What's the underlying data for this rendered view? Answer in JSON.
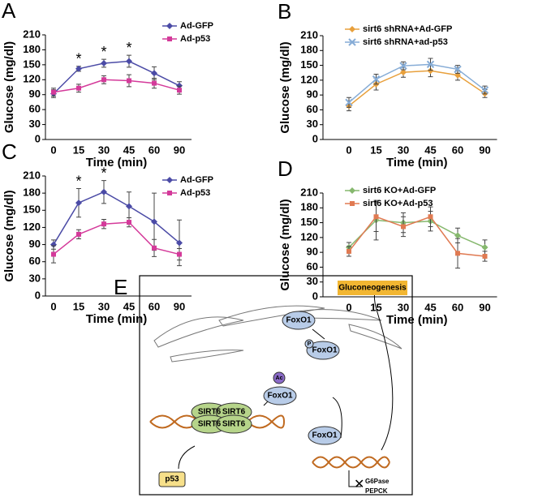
{
  "chart_data": [
    {
      "type": "line",
      "panel": "A",
      "x_label": "Time (min)",
      "y_label": "Glucose (mg/dl)",
      "categories": [
        "0",
        "15",
        "30",
        "45",
        "60",
        "90"
      ],
      "ylim": [
        0,
        210
      ],
      "yticks": [
        0,
        30,
        60,
        90,
        120,
        150,
        180,
        210
      ],
      "legend": "upper right",
      "series": [
        {
          "name": "Ad-GFP",
          "color": "#4b4ba6",
          "marker": "diamond",
          "values": [
            92,
            142,
            153,
            157,
            133,
            108
          ],
          "errors": [
            8,
            5,
            8,
            12,
            13,
            8
          ]
        },
        {
          "name": "Ad-p53",
          "color": "#d43a9a",
          "marker": "square",
          "values": [
            95,
            103,
            120,
            118,
            113,
            99
          ],
          "errors": [
            8,
            8,
            8,
            12,
            10,
            8
          ]
        }
      ],
      "annotations": [
        {
          "text": "*",
          "category": "15"
        },
        {
          "text": "*",
          "category": "30"
        },
        {
          "text": "*",
          "category": "45"
        }
      ]
    },
    {
      "type": "line",
      "panel": "B",
      "x_label": "Time (min)",
      "y_label": "Glucose (mg/dl)",
      "categories": [
        "0",
        "15",
        "30",
        "45",
        "60",
        "90"
      ],
      "ylim": [
        0,
        210
      ],
      "yticks": [
        0,
        30,
        60,
        90,
        120,
        150,
        180,
        210
      ],
      "legend": "upper right",
      "series": [
        {
          "name": "sirt6 shRNA+Ad-GFP",
          "color": "#e8a03c",
          "marker": "diamond",
          "values": [
            68,
            112,
            136,
            139,
            130,
            93
          ],
          "errors": [
            10,
            12,
            10,
            12,
            10,
            8
          ]
        },
        {
          "name": "sirt6 shRNA+ad-p53",
          "color": "#86acd6",
          "marker": "cross",
          "values": [
            75,
            122,
            149,
            152,
            142,
            100
          ],
          "errors": [
            10,
            10,
            8,
            12,
            8,
            8
          ]
        }
      ],
      "annotations": []
    },
    {
      "type": "line",
      "panel": "C",
      "x_label": "Time (min)",
      "y_label": "Glucose (mg/dl)",
      "categories": [
        "0",
        "15",
        "30",
        "45",
        "60",
        "90"
      ],
      "ylim": [
        0,
        210
      ],
      "yticks": [
        0,
        30,
        60,
        90,
        120,
        150,
        180,
        210
      ],
      "legend": "upper right",
      "series": [
        {
          "name": "Ad-GFP",
          "color": "#4b4ba6",
          "marker": "diamond",
          "values": [
            90,
            163,
            182,
            157,
            130,
            93
          ],
          "errors": [
            8,
            25,
            20,
            25,
            50,
            40
          ]
        },
        {
          "name": "Ad-p53",
          "color": "#d43a9a",
          "marker": "square",
          "values": [
            73,
            108,
            126,
            129,
            84,
            73
          ],
          "errors": [
            15,
            8,
            8,
            8,
            15,
            10
          ]
        }
      ],
      "annotations": [
        {
          "text": "*",
          "category": "15"
        },
        {
          "text": "*",
          "category": "30"
        }
      ]
    },
    {
      "type": "line",
      "panel": "D",
      "x_label": "Time (min)",
      "y_label": "Glucose (mg/dl)",
      "categories": [
        "0",
        "15",
        "30",
        "45",
        "60",
        "90"
      ],
      "ylim": [
        0,
        210
      ],
      "yticks": [
        0,
        30,
        60,
        90,
        120,
        150,
        180,
        210
      ],
      "legend": "upper right",
      "series": [
        {
          "name": "sirt6 KO+Ad-GFP",
          "color": "#86b86e",
          "marker": "diamond",
          "values": [
            100,
            155,
            150,
            153,
            124,
            100
          ],
          "errors": [
            10,
            40,
            20,
            20,
            15,
            15
          ]
        },
        {
          "name": "sirt6 KO+Ad-p53",
          "color": "#e07a52",
          "marker": "square",
          "values": [
            92,
            162,
            142,
            162,
            88,
            82
          ],
          "errors": [
            10,
            30,
            20,
            20,
            30,
            10
          ]
        }
      ],
      "annotations": []
    }
  ],
  "diagram": {
    "panel": "E",
    "foxo1": [
      "FoxO1",
      "FoxO1",
      "FoxO1",
      "FoxO1"
    ],
    "phospho": "P",
    "acetyl": "Ac",
    "output": "Gluconeogenesis",
    "sirt6": [
      "SIRT6",
      "SIRT6",
      "SIRT6",
      "SIRT6"
    ],
    "p53": "p53",
    "genes": [
      "G6Pase",
      "PEPCK"
    ]
  }
}
